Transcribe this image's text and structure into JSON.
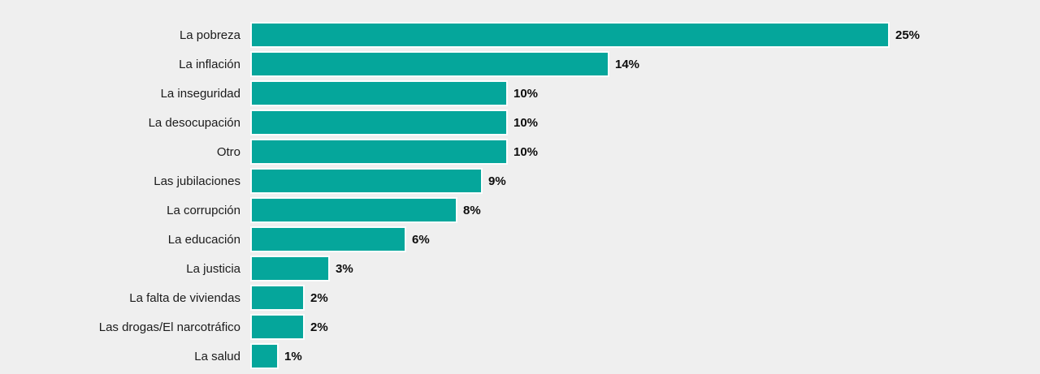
{
  "chart_data": {
    "type": "bar",
    "orientation": "horizontal",
    "title": "",
    "xlabel": "",
    "ylabel": "",
    "xlim": [
      0,
      25
    ],
    "grid": false,
    "legend": null,
    "categories": [
      "La pobreza",
      "La inflación",
      "La inseguridad",
      "La desocupación",
      "Otro",
      "Las jubilaciones",
      "La corrupción",
      "La educación",
      "La justicia",
      "La falta de viviendas",
      "Las drogas/El narcotráfico",
      "La salud"
    ],
    "values": [
      25,
      14,
      10,
      10,
      10,
      9,
      8,
      6,
      3,
      2,
      2,
      1
    ],
    "value_labels": [
      "25%",
      "14%",
      "10%",
      "10%",
      "10%",
      "9%",
      "8%",
      "6%",
      "3%",
      "2%",
      "2%",
      "1%"
    ],
    "colors": {
      "bar": "#05a69b",
      "background": "#efefef",
      "category_text": "#1b1b1b",
      "value_text": "#0d0d0d"
    }
  }
}
